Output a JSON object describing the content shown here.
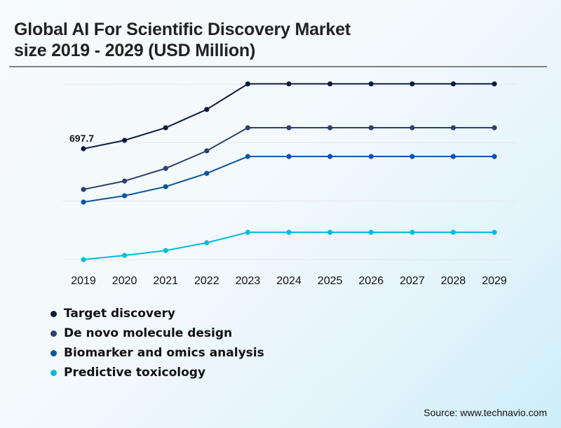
{
  "header": {
    "title_line1": "Global AI For Scientific Discovery Market",
    "title_line2": "size 2019 - 2029 (USD Million)"
  },
  "footer": {
    "source": "Source: www.technavio.com"
  },
  "chart_data": {
    "type": "line",
    "title": "Global AI For Scientific Discovery Market size 2019 - 2029 (USD Million)",
    "xlabel": "",
    "ylabel": "USD Million",
    "x": [
      "2019",
      "2020",
      "2021",
      "2022",
      "2023",
      "2024",
      "2025",
      "2026",
      "2027",
      "2028",
      "2029"
    ],
    "ylim": [
      0,
      1104
    ],
    "gridlines": [
      0,
      368,
      736,
      1104
    ],
    "grid": true,
    "legend_position": "bottom-left",
    "series": [
      {
        "name": "Target discovery",
        "color": "#0d1b40",
        "values": [
          697.7,
          750.7,
          830,
          945,
          1106,
          1106,
          1106,
          1106,
          1106,
          1106,
          1106
        ]
      },
      {
        "name": "De novo molecule design",
        "color": "#2e3f70",
        "values": [
          441.6,
          494.6,
          574,
          684.5,
          830,
          830,
          830,
          830,
          830,
          830,
          830
        ]
      },
      {
        "name": "Biomarker and omics analysis",
        "color": "#0a55a0",
        "values": [
          362,
          402,
          459,
          543,
          649,
          649,
          649,
          649,
          649,
          649,
          649
        ]
      },
      {
        "name": "Predictive toxicology",
        "color": "#00bcdc",
        "values": [
          0,
          26.5,
          57,
          106,
          172,
          172,
          172,
          172,
          172,
          172,
          172
        ]
      }
    ],
    "annotations": [
      {
        "series": "Target discovery",
        "x": "2019",
        "label": "697.7"
      }
    ]
  }
}
